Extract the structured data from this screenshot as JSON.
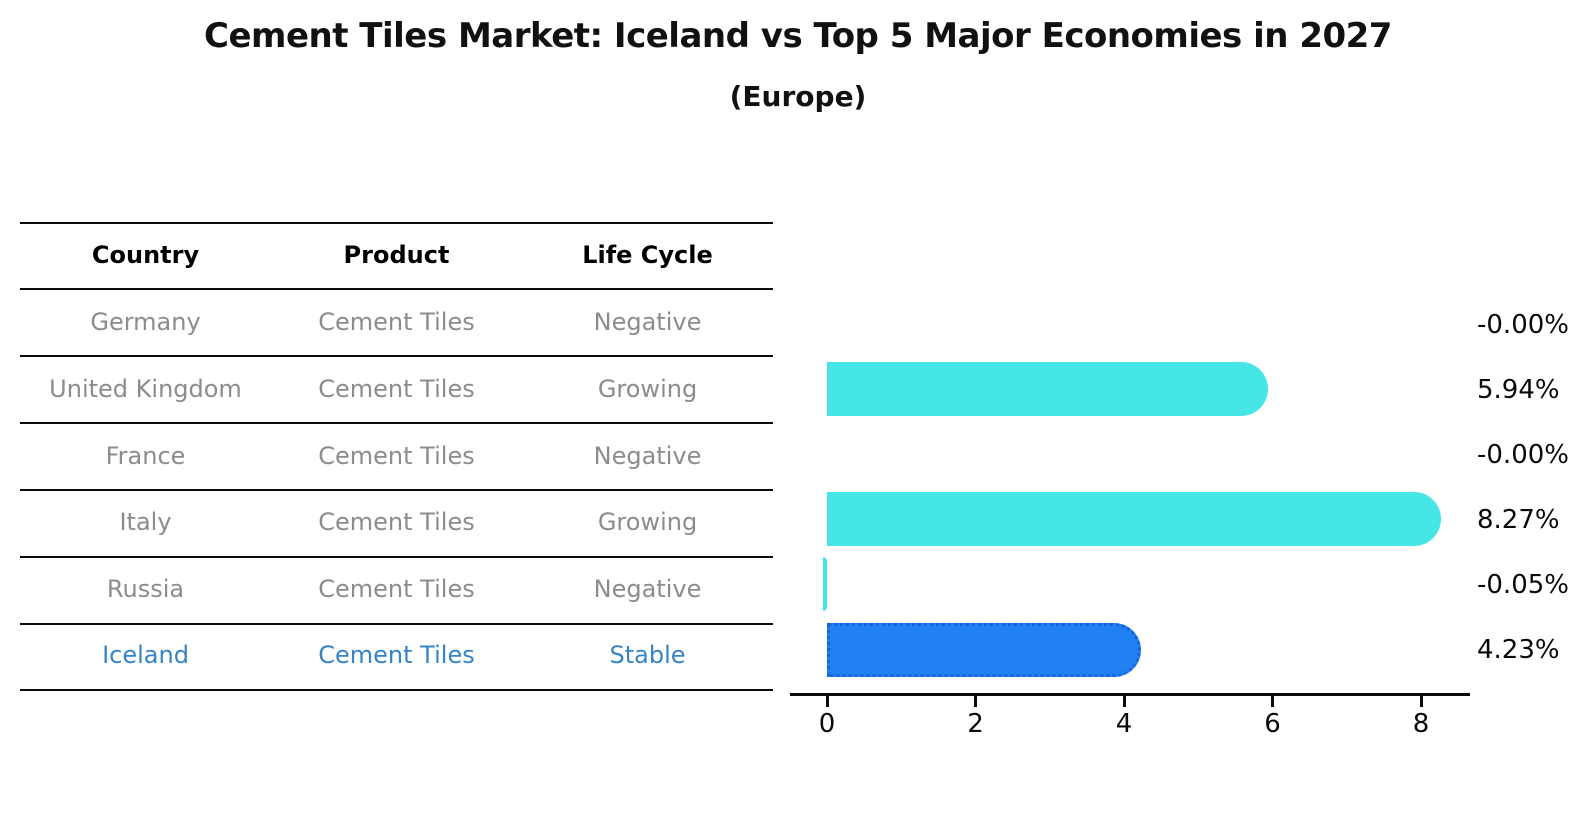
{
  "title": "Cement Tiles Market: Iceland vs Top 5 Major Economies in 2027",
  "subtitle": "(Europe)",
  "table": {
    "headers": {
      "country": "Country",
      "product": "Product",
      "life_cycle": "Life Cycle"
    },
    "rows": [
      {
        "country": "Germany",
        "product": "Cement Tiles",
        "life_cycle": "Negative"
      },
      {
        "country": "United Kingdom",
        "product": "Cement Tiles",
        "life_cycle": "Growing"
      },
      {
        "country": "France",
        "product": "Cement Tiles",
        "life_cycle": "Negative"
      },
      {
        "country": "Italy",
        "product": "Cement Tiles",
        "life_cycle": "Growing"
      },
      {
        "country": "Russia",
        "product": "Cement Tiles",
        "life_cycle": "Negative"
      },
      {
        "country": "Iceland",
        "product": "Cement Tiles",
        "life_cycle": "Stable"
      }
    ],
    "highlight_row": "Iceland"
  },
  "chart_data": {
    "type": "bar",
    "orientation": "horizontal",
    "categories": [
      "Germany",
      "United Kingdom",
      "France",
      "Italy",
      "Russia",
      "Iceland"
    ],
    "values": [
      -0.0,
      5.94,
      -0.0,
      8.27,
      -0.05,
      4.23
    ],
    "value_labels": [
      "-0.00%",
      "5.94%",
      "-0.00%",
      "8.27%",
      "-0.05%",
      "4.23%"
    ],
    "x_ticks": [
      0,
      2,
      4,
      6,
      8
    ],
    "xlim": [
      -0.1,
      8.66
    ],
    "grid": false,
    "legend": false,
    "bar_color": "#46e6e6",
    "highlight_bar_color": "#2181f2",
    "highlight_index": 5,
    "highlight_text_color": "#3584c6",
    "row_text_color": "#8c8c8c"
  }
}
